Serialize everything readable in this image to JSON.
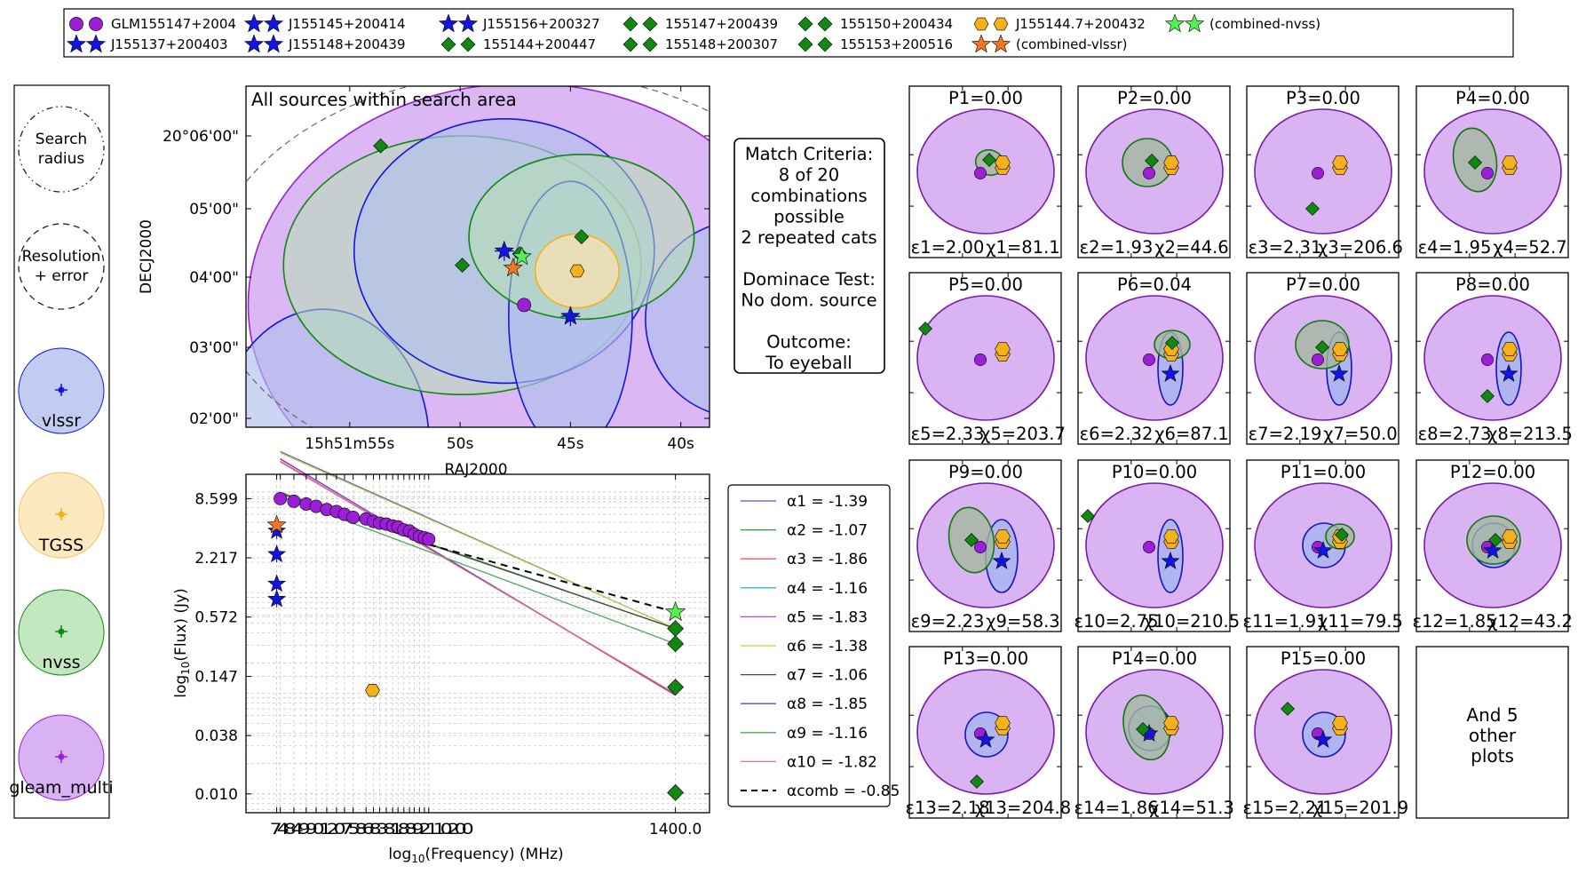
{
  "legend_top": [
    {
      "label": "GLM155147+2004",
      "marker": "circle",
      "color": "#9a1fd6"
    },
    {
      "label": "J155137+200403",
      "marker": "star",
      "color": "#1414e0"
    },
    {
      "label": "J155145+200414",
      "marker": "star",
      "color": "#1414e0"
    },
    {
      "label": "J155148+200439",
      "marker": "star",
      "color": "#1414e0"
    },
    {
      "label": "J155156+200327",
      "marker": "star",
      "color": "#1414e0"
    },
    {
      "label": "155144+200447",
      "marker": "diamond",
      "color": "#118811"
    },
    {
      "label": "155147+200439",
      "marker": "diamond",
      "color": "#118811"
    },
    {
      "label": "155148+200307",
      "marker": "diamond",
      "color": "#118811"
    },
    {
      "label": "155150+200434",
      "marker": "diamond",
      "color": "#118811"
    },
    {
      "label": "155153+200516",
      "marker": "diamond",
      "color": "#118811"
    },
    {
      "label": "J155144.7+200432",
      "marker": "hexagon",
      "color": "#f5b01a"
    },
    {
      "label": "(combined-vlssr)",
      "marker": "star",
      "color": "#f07820"
    },
    {
      "label": "(combined-nvss)",
      "marker": "star",
      "color": "#55ee55"
    }
  ],
  "left_legend": [
    {
      "label": "Search\nradius",
      "style": "dashdot"
    },
    {
      "label": "Resolution\n+ error",
      "style": "dashed"
    },
    {
      "label": "vlssr",
      "fill": "#b0c0ee",
      "edge": "#1414e0",
      "marker": "#1414e0"
    },
    {
      "label": "TGSS",
      "fill": "#fde4b0",
      "edge": "#f5c060",
      "marker": "#f5b01a"
    },
    {
      "label": "nvss",
      "fill": "#b4e2b0",
      "edge": "#118811",
      "marker": "#118811"
    },
    {
      "label": "gleam_multi",
      "fill": "#cf9ff0",
      "edge": "#9a1fd6",
      "marker": "#9a1fd6"
    }
  ],
  "match_box": [
    "Match Criteria:",
    "8 of 20",
    "combinations",
    "possible",
    "2 repeated cats",
    "",
    "Dominace Test:",
    "No dom. source",
    "",
    "Outcome:",
    "To eyeball"
  ],
  "chart_data": [
    {
      "type": "scatter",
      "title": "All sources within search area",
      "xlabel": "RAJ2000",
      "ylabel": "DECJ2000",
      "xticks": [
        "15h51m55s",
        "50s",
        "45s",
        "40s"
      ],
      "yticks": [
        "20°06'00\"",
        "05'00\"",
        "04'00\"",
        "03'00\"",
        "02'00\""
      ],
      "x_range_sec_ra": [
        59.7,
        38.7
      ],
      "y_range_arcsec": [
        115,
        -5
      ],
      "search_radius_arcsec": 110,
      "sources": [
        {
          "name": "GLM155147+2004",
          "ra": 47.1,
          "dec": 38,
          "marker": "circle",
          "ellipse": [
            12.5,
            94,
            62,
            0
          ],
          "fill": "#cf9ff0",
          "edge": "#9a1fd6",
          "alpha": 0.75
        },
        {
          "name": "J155137+200403",
          "ra": 37.3,
          "dec": 33,
          "marker": "star",
          "ellipse": [
            4.3,
            35,
            34,
            0
          ],
          "fill": "#b0c0ee",
          "edge": "#1414e0",
          "alpha": 0.65
        },
        {
          "name": "J155145+200414",
          "ra": 45.0,
          "dec": 34,
          "marker": "star",
          "ellipse": [
            2.8,
            35,
            60,
            0
          ],
          "fill": "#b0c0ee",
          "edge": "#1414e0",
          "alpha": 0.65
        },
        {
          "name": "J155148+200439",
          "ra": 48.0,
          "dec": 57,
          "marker": "star",
          "ellipse": [
            6.8,
            48,
            45,
            0
          ],
          "fill": "#b0c0ee",
          "edge": "#1414e0",
          "alpha": 0.65
        },
        {
          "name": "J155156+200327",
          "ra": 56.2,
          "dec": -11,
          "marker": "star",
          "ellipse": [
            4.8,
            35,
            60,
            0
          ],
          "fill": "#b0c0ee",
          "edge": "#1414e0",
          "alpha": 0.65
        },
        {
          "name": "155144+200447",
          "ra": 44.5,
          "dec": 62,
          "marker": "diamond",
          "ellipse": [
            5.1,
            29,
            29,
            0
          ],
          "fill": "#b4e2b0",
          "edge": "#118811",
          "alpha": 0.55
        },
        {
          "name": "155147+200439",
          "ra": 47.3,
          "dec": 56,
          "marker": "diamond",
          "ellipse": [
            0,
            0,
            0,
            0
          ]
        },
        {
          "name": "155148+200307",
          "ra": 47.7,
          "dec": -27,
          "marker": "diamond",
          "ellipse": [
            0,
            0,
            0,
            0
          ]
        },
        {
          "name": "155150+200434",
          "ra": 49.9,
          "dec": 52,
          "marker": "diamond",
          "ellipse": [
            8.1,
            46,
            45,
            0
          ],
          "fill": "#b4e2b0",
          "edge": "#118811",
          "alpha": 0.55
        },
        {
          "name": "155153+200516",
          "ra": 53.6,
          "dec": 94,
          "marker": "diamond",
          "ellipse": [
            0,
            0,
            0,
            0
          ]
        },
        {
          "name": "J155144.7+200432",
          "ra": 44.7,
          "dec": 50,
          "marker": "hexagon",
          "ellipse": [
            1.9,
            13,
            13,
            0
          ],
          "fill": "#fde4b0",
          "edge": "#f5b01a",
          "alpha": 0.7
        },
        {
          "name": "(combined-vlssr)",
          "ra": 47.6,
          "dec": 51,
          "marker": "star",
          "color": "#f07820"
        },
        {
          "name": "(combined-nvss)",
          "ra": 47.2,
          "dec": 55,
          "marker": "star",
          "color": "#55ee55"
        }
      ],
      "resolution_circle_arcsec": [
        48.3,
        46,
        72
      ]
    },
    {
      "type": "line",
      "xlabel": "log10(Frequency) (MHz)",
      "ylabel": "log10(Flux) (Jy)",
      "xtick_label": "1400.0",
      "xtick_crowded": "7484990120758683818892110200",
      "yticks": [
        "8.599",
        "2.217",
        "0.572",
        "0.147",
        "0.038",
        "0.010"
      ],
      "ytick_values": [
        8.599,
        2.217,
        0.572,
        0.147,
        0.038,
        0.01
      ],
      "xlim": [
        59,
        1800
      ],
      "ylim": [
        0.0065,
        15
      ],
      "gleam_freq": [
        76,
        84,
        92,
        99,
        107,
        115,
        122,
        130,
        143,
        151,
        158,
        166,
        174,
        181,
        189,
        197,
        204,
        212,
        220,
        227
      ],
      "gleam_flux": [
        8.6,
        8.1,
        7.6,
        7.2,
        6.7,
        6.4,
        6.0,
        5.6,
        5.4,
        5.1,
        4.9,
        4.8,
        4.6,
        4.5,
        4.2,
        4.1,
        3.8,
        3.6,
        3.5,
        3.4
      ],
      "vlssr_freq": 74,
      "vlssr_flux": [
        4.1,
        2.4,
        1.22,
        0.86
      ],
      "combined_vlssr_flux": 4.7,
      "tgss_freq": 150,
      "tgss_flux": 0.107,
      "nvss_freq": 1400,
      "nvss_flux": [
        0.44,
        0.31,
        0.115,
        0.0103
      ],
      "combined_nvss_flux": 0.64,
      "alpha_lines": [
        {
          "label": "α1 = -1.39",
          "alpha": -1.39,
          "nu1": 1400,
          "s1": 0.44,
          "color": "#5555dd"
        },
        {
          "label": "α2 = -1.07",
          "alpha": -1.07,
          "nu1": 1400,
          "s1": 0.44,
          "color": "#339933"
        },
        {
          "label": "α3 = -1.86",
          "alpha": -1.86,
          "nu1": 1400,
          "s1": 0.095,
          "color": "#e06060"
        },
        {
          "label": "α4 = -1.16",
          "alpha": -1.16,
          "nu1": 1400,
          "s1": 0.31,
          "color": "#33bbcc"
        },
        {
          "label": "α5 = -1.83",
          "alpha": -1.83,
          "nu1": 1400,
          "s1": 0.098,
          "color": "#cc44cc"
        },
        {
          "label": "α6 = -1.38",
          "alpha": -1.38,
          "nu1": 1400,
          "s1": 0.44,
          "color": "#cccc33"
        },
        {
          "label": "α7 = -1.06",
          "alpha": -1.06,
          "nu1": 1400,
          "s1": 0.44,
          "color": "#444444"
        },
        {
          "label": "α8 = -1.85",
          "alpha": -1.85,
          "nu1": 1400,
          "s1": 0.097,
          "color": "#6644cc"
        },
        {
          "label": "α9 = -1.16",
          "alpha": -1.16,
          "nu1": 1400,
          "s1": 0.31,
          "color": "#55aa55"
        },
        {
          "label": "α10 = -1.82",
          "alpha": -1.82,
          "nu1": 1400,
          "s1": 0.099,
          "color": "#ee7777"
        },
        {
          "label": "αcomb = -0.85",
          "alpha": -0.85,
          "nu1": 1400,
          "s1": 0.64,
          "color": "#000000",
          "dashed": true
        }
      ]
    }
  ],
  "panels": [
    {
      "P": "P1=0.00",
      "eps": "ε1=2.00",
      "chi": "χ1=81.1",
      "blue": [
        [
          133,
          7,
          16,
          22
        ]
      ],
      "green": [
        [
          4.5,
          -10,
          16,
          14,
          20
        ]
      ],
      "gd": [
        4,
        -13
      ]
    },
    {
      "P": "P2=0.00",
      "eps": "ε2=1.93",
      "chi": "χ2=44.6",
      "blue": [
        [
          133,
          7,
          16,
          22
        ]
      ],
      "green": [
        [
          -8,
          -10,
          28,
          27,
          0
        ]
      ],
      "gd": [
        -3,
        -12
      ]
    },
    {
      "P": "P3=0.00",
      "eps": "ε3=2.31",
      "chi": "χ3=206.6",
      "blue": [
        [
          133,
          7,
          16,
          22
        ]
      ],
      "green": [],
      "gd": [
        -12,
        42
      ]
    },
    {
      "P": "P4=0.00",
      "eps": "ε4=1.95",
      "chi": "χ4=52.7",
      "blue": [
        [
          133,
          7,
          16,
          22
        ]
      ],
      "green": [
        [
          -20,
          -13,
          24,
          36,
          -10
        ]
      ],
      "gd": [
        -20,
        -10
      ]
    },
    {
      "P": "P5=0.00",
      "eps": "ε5=2.33",
      "chi": "χ5=203.7",
      "blue": [
        [
          133,
          9,
          16,
          22
        ]
      ],
      "green": [],
      "gd": [
        -68,
        -33
      ]
    },
    {
      "P": "P6=0.04",
      "eps": "ε6=2.32",
      "chi": "χ6=87.1",
      "blue": [
        [
          18,
          12,
          14,
          41
        ]
      ],
      "green": [
        [
          20,
          -15,
          20,
          16,
          0
        ]
      ],
      "gd": [
        20,
        -17
      ]
    },
    {
      "P": "P7=0.00",
      "eps": "ε7=2.19",
      "chi": "χ7=50.0",
      "blue": [
        [
          18,
          12,
          14,
          41
        ]
      ],
      "green": [
        [
          -1,
          -15,
          30,
          27,
          0
        ]
      ],
      "gd": [
        -1,
        -12
      ]
    },
    {
      "P": "P8=0.00",
      "eps": "ε8=2.73",
      "chi": "χ8=213.5",
      "blue": [
        [
          18,
          12,
          14,
          41
        ]
      ],
      "green": [],
      "gd": [
        -6,
        43
      ]
    },
    {
      "P": "P9=0.00",
      "eps": "ε9=2.23",
      "chi": "χ9=58.3",
      "blue": [
        [
          18,
          12,
          18,
          41
        ]
      ],
      "green": [
        [
          -16,
          -6,
          25,
          37,
          -10
        ]
      ],
      "gd": [
        -16,
        -6
      ]
    },
    {
      "P": "P10=0.00",
      "eps": "ε10=2.75",
      "chi": "χ10=210.5",
      "blue": [
        [
          18,
          12,
          14,
          41
        ]
      ],
      "green": [],
      "gd": [
        -75,
        -33
      ]
    },
    {
      "P": "P11=0.00",
      "eps": "ε11=1.91",
      "chi": "χ11=79.5",
      "blue": [
        [
          1,
          0,
          24,
          25
        ]
      ],
      "green": [
        [
          19,
          -10,
          16,
          14,
          0
        ]
      ],
      "gd": [
        21,
        -12
      ]
    },
    {
      "P": "P12=0.00",
      "eps": "ε12=1.85",
      "chi": "χ12=43.2",
      "blue": [
        [
          1,
          0,
          24,
          25
        ]
      ],
      "green": [
        [
          1,
          -6,
          30,
          27,
          0
        ]
      ],
      "gd": [
        3,
        -6
      ]
    },
    {
      "P": "P13=0.00",
      "eps": "ε13=2.18",
      "chi": "χ13=204.8",
      "blue": [
        [
          1,
          3,
          24,
          25
        ]
      ],
      "green": [],
      "gd": [
        -10,
        56
      ]
    },
    {
      "P": "P14=0.00",
      "eps": "ε14=1.86",
      "chi": "χ14=51.3",
      "blue": [
        [
          -5,
          -4,
          24,
          25
        ]
      ],
      "green": [
        [
          -9,
          -5,
          25,
          37,
          -15
        ]
      ],
      "gd": [
        -13,
        -3
      ]
    },
    {
      "P": "P15=0.00",
      "eps": "ε15=2.21",
      "chi": "χ15=201.9",
      "blue": [
        [
          1,
          3,
          24,
          25
        ]
      ],
      "green": [],
      "gd": [
        -40,
        -26
      ]
    }
  ],
  "and_more": [
    "And 5",
    "other",
    "plots"
  ]
}
